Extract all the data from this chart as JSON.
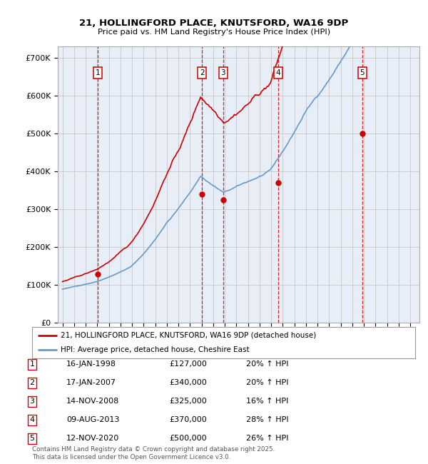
{
  "title_line1": "21, HOLLINGFORD PLACE, KNUTSFORD, WA16 9DP",
  "title_line2": "Price paid vs. HM Land Registry's House Price Index (HPI)",
  "ylim": [
    0,
    730000
  ],
  "yticks": [
    0,
    100000,
    200000,
    300000,
    400000,
    500000,
    600000,
    700000
  ],
  "ytick_labels": [
    "£0",
    "£100K",
    "£200K",
    "£300K",
    "£400K",
    "£500K",
    "£600K",
    "£700K"
  ],
  "sale_color": "#cc0000",
  "hpi_color": "#6699cc",
  "dashed_line_color": "#cc0000",
  "grid_color": "#cccccc",
  "bg_color": "#e8eef8",
  "transactions": [
    {
      "num": 1,
      "year": 1998.04,
      "price": 127000,
      "pct": "20%",
      "date_str": "16-JAN-1998",
      "price_str": "£127,000"
    },
    {
      "num": 2,
      "year": 2007.04,
      "price": 340000,
      "pct": "20%",
      "date_str": "17-JAN-2007",
      "price_str": "£340,000"
    },
    {
      "num": 3,
      "year": 2008.87,
      "price": 325000,
      "pct": "16%",
      "date_str": "14-NOV-2008",
      "price_str": "£325,000"
    },
    {
      "num": 4,
      "year": 2013.6,
      "price": 370000,
      "pct": "28%",
      "date_str": "09-AUG-2013",
      "price_str": "£370,000"
    },
    {
      "num": 5,
      "year": 2020.87,
      "price": 500000,
      "pct": "26%",
      "date_str": "12-NOV-2020",
      "price_str": "£500,000"
    }
  ],
  "legend_label_red": "21, HOLLINGFORD PLACE, KNUTSFORD, WA16 9DP (detached house)",
  "legend_label_blue": "HPI: Average price, detached house, Cheshire East",
  "footer": "Contains HM Land Registry data © Crown copyright and database right 2025.\nThis data is licensed under the Open Government Licence v3.0."
}
